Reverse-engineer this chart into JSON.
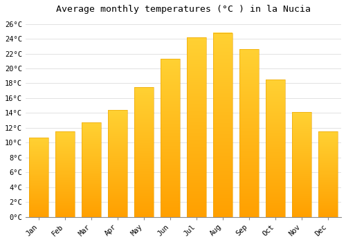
{
  "title": "Average monthly temperatures (°C ) in la Nucia",
  "months": [
    "Jan",
    "Feb",
    "Mar",
    "Apr",
    "May",
    "Jun",
    "Jul",
    "Aug",
    "Sep",
    "Oct",
    "Nov",
    "Dec"
  ],
  "values": [
    10.7,
    11.5,
    12.7,
    14.4,
    17.5,
    21.3,
    24.2,
    24.8,
    22.6,
    18.5,
    14.1,
    11.5
  ],
  "bar_color_top": "#FFCC44",
  "bar_color_bottom": "#FFA000",
  "bar_edge_color": "#E8A000",
  "ylim": [
    0,
    27
  ],
  "ytick_step": 2,
  "background_color": "#FFFFFF",
  "grid_color": "#DDDDDD",
  "title_fontsize": 9.5,
  "tick_fontsize": 7.5,
  "font_family": "monospace"
}
